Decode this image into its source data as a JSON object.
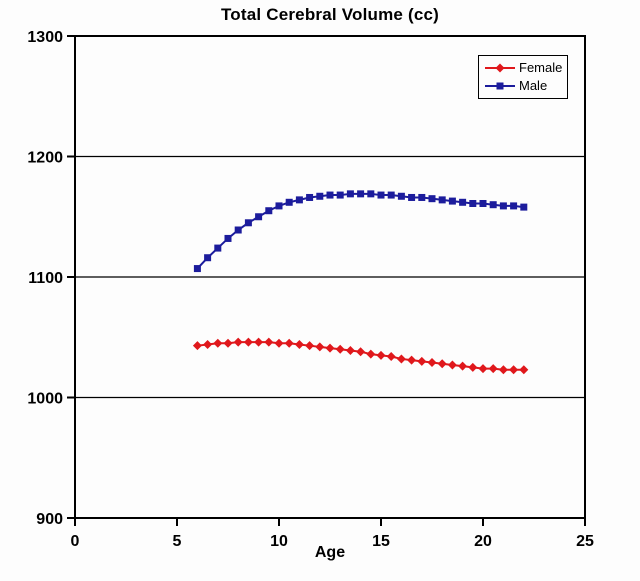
{
  "chart_data": {
    "type": "line",
    "title": "Total Cerebral Volume (cc)",
    "xlabel": "Age",
    "ylabel": "",
    "xlim": [
      0,
      25
    ],
    "ylim": [
      900,
      1300
    ],
    "x_ticks": [
      0,
      5,
      10,
      15,
      20,
      25
    ],
    "y_ticks": [
      900,
      1000,
      1100,
      1200,
      1300
    ],
    "grid": "horizontal-major",
    "legend_position": "top-right",
    "frame_color": "#000000",
    "x": [
      6,
      6.5,
      7,
      7.5,
      8,
      8.5,
      9,
      9.5,
      10,
      10.5,
      11,
      11.5,
      12,
      12.5,
      13,
      13.5,
      14,
      14.5,
      15,
      15.5,
      16,
      16.5,
      17,
      17.5,
      18,
      18.5,
      19,
      19.5,
      20,
      20.5,
      21,
      21.5,
      22
    ],
    "series": [
      {
        "name": "Female",
        "color": "#e0181c",
        "marker": "diamond",
        "values": [
          1043,
          1044,
          1045,
          1045,
          1046,
          1046,
          1046,
          1046,
          1045,
          1045,
          1044,
          1043,
          1042,
          1041,
          1040,
          1039,
          1038,
          1036,
          1035,
          1034,
          1032,
          1031,
          1030,
          1029,
          1028,
          1027,
          1026,
          1025,
          1024,
          1024,
          1023,
          1023,
          1023
        ]
      },
      {
        "name": "Male",
        "color": "#1c1c9c",
        "marker": "square",
        "values": [
          1107,
          1116,
          1124,
          1132,
          1139,
          1145,
          1150,
          1155,
          1159,
          1162,
          1164,
          1166,
          1167,
          1168,
          1168,
          1169,
          1169,
          1169,
          1168,
          1168,
          1167,
          1166,
          1166,
          1165,
          1164,
          1163,
          1162,
          1161,
          1161,
          1160,
          1159,
          1159,
          1158
        ]
      }
    ]
  }
}
